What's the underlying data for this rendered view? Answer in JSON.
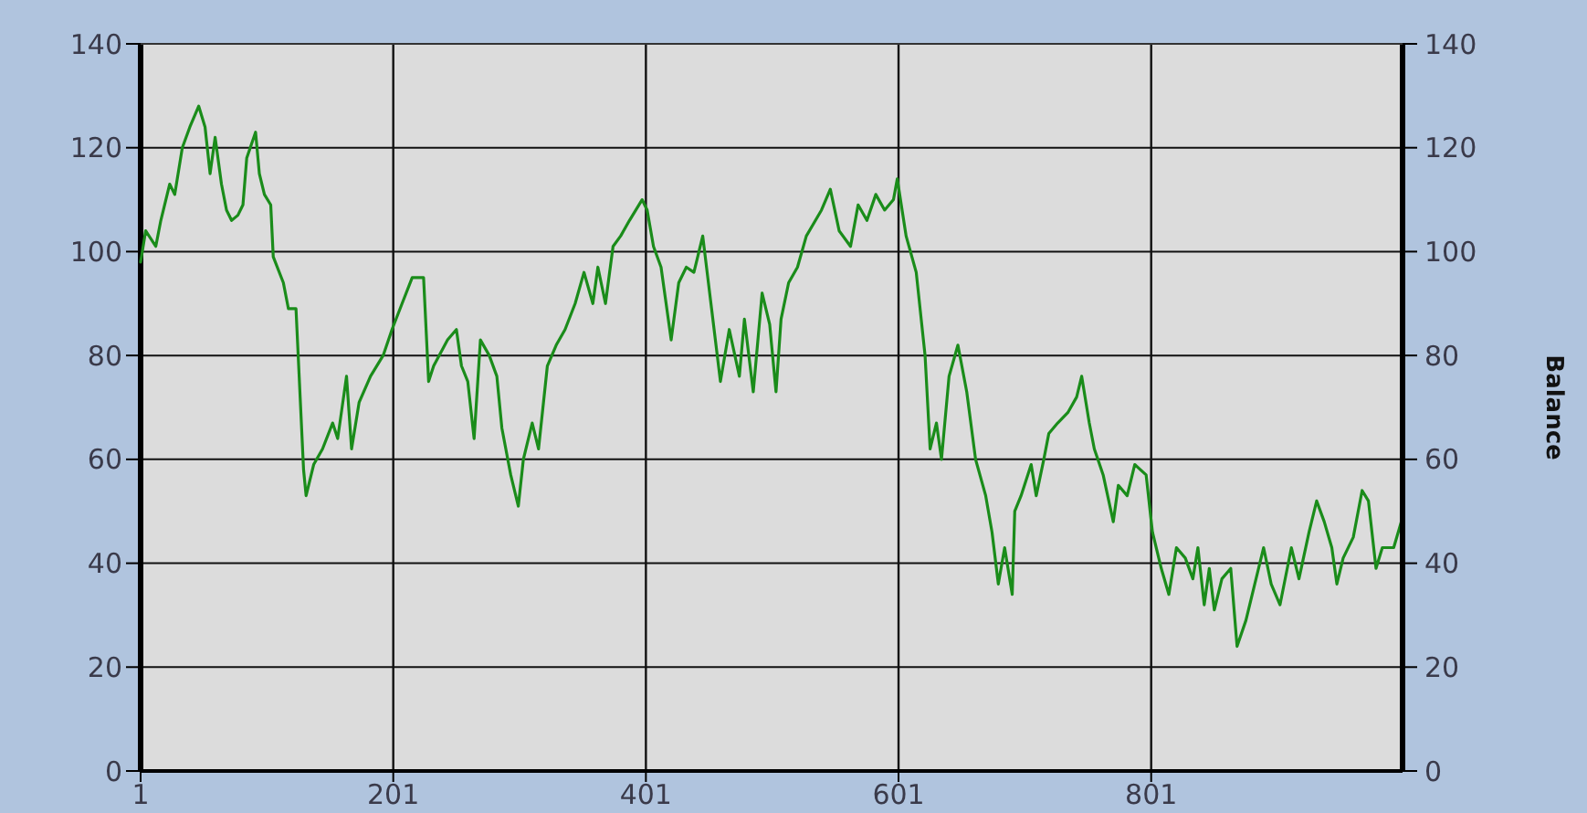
{
  "chart_data": {
    "type": "line",
    "y2label": "Balance",
    "x": [
      1,
      5,
      13,
      17,
      24,
      28,
      34,
      40,
      47,
      52,
      56,
      60,
      65,
      69,
      73,
      78,
      82,
      85,
      92,
      95,
      99,
      104,
      106,
      114,
      118,
      124,
      130,
      132,
      138,
      145,
      153,
      157,
      164,
      168,
      174,
      183,
      193,
      200,
      208,
      216,
      225,
      229,
      233,
      244,
      251,
      255,
      260,
      265,
      270,
      277,
      283,
      287,
      294,
      300,
      304,
      311,
      316,
      323,
      330,
      337,
      345,
      352,
      359,
      363,
      369,
      375,
      381,
      388,
      398,
      402,
      407,
      413,
      421,
      427,
      433,
      439,
      446,
      453,
      460,
      467,
      475,
      479,
      486,
      493,
      499,
      504,
      508,
      514,
      521,
      528,
      540,
      547,
      554,
      563,
      569,
      576,
      583,
      590,
      597,
      600,
      607,
      615,
      622,
      626,
      631,
      635,
      641,
      648,
      655,
      662,
      670,
      675,
      680,
      685,
      691,
      693,
      698,
      706,
      710,
      716,
      720,
      727,
      735,
      742,
      746,
      752,
      756,
      763,
      771,
      775,
      782,
      788,
      797,
      802,
      809,
      815,
      821,
      828,
      834,
      838,
      843,
      847,
      851,
      857,
      864,
      869,
      876,
      883,
      890,
      896,
      903,
      912,
      918,
      926,
      932,
      938,
      944,
      948,
      953,
      961,
      968,
      973,
      979,
      984,
      993,
      999
    ],
    "series": [
      {
        "color": "#1a8c1a",
        "values": [
          98,
          104,
          101,
          106,
          113,
          111,
          120,
          124,
          128,
          124,
          115,
          122,
          113,
          108,
          106,
          107,
          109,
          118,
          123,
          115,
          111,
          109,
          99,
          94,
          89,
          89,
          58,
          53,
          59,
          62,
          67,
          64,
          76,
          62,
          71,
          76,
          80,
          85,
          90,
          95,
          95,
          75,
          78,
          83,
          85,
          78,
          75,
          64,
          83,
          80,
          76,
          66,
          57,
          51,
          60,
          67,
          62,
          78,
          82,
          85,
          90,
          96,
          90,
          97,
          90,
          101,
          103,
          106,
          110,
          108,
          101,
          97,
          83,
          94,
          97,
          96,
          103,
          89,
          75,
          85,
          76,
          87,
          73,
          92,
          86,
          73,
          87,
          94,
          97,
          103,
          108,
          112,
          104,
          101,
          109,
          106,
          111,
          108,
          110,
          114,
          103,
          96,
          80,
          62,
          67,
          60,
          76,
          82,
          73,
          60,
          53,
          46,
          36,
          43,
          34,
          50,
          53,
          59,
          53,
          60,
          65,
          67,
          69,
          72,
          76,
          67,
          62,
          57,
          48,
          55,
          53,
          59,
          57,
          46,
          39,
          34,
          43,
          41,
          37,
          43,
          32,
          39,
          31,
          37,
          39,
          24,
          29,
          36,
          43,
          36,
          32,
          43,
          37,
          46,
          52,
          48,
          43,
          36,
          41,
          45,
          54,
          52,
          39,
          43,
          43,
          48
        ]
      }
    ],
    "xlim": [
      1,
      1000
    ],
    "xticks": [
      1,
      201,
      401,
      601,
      801
    ],
    "ylim": [
      0,
      140
    ],
    "yticks": [
      0,
      20,
      40,
      60,
      80,
      100,
      120,
      140
    ],
    "y2lim": [
      0,
      140
    ],
    "y2ticks": [
      0,
      20,
      40,
      60,
      80,
      100,
      120,
      140
    ],
    "grid": true,
    "line_style": "solid"
  }
}
